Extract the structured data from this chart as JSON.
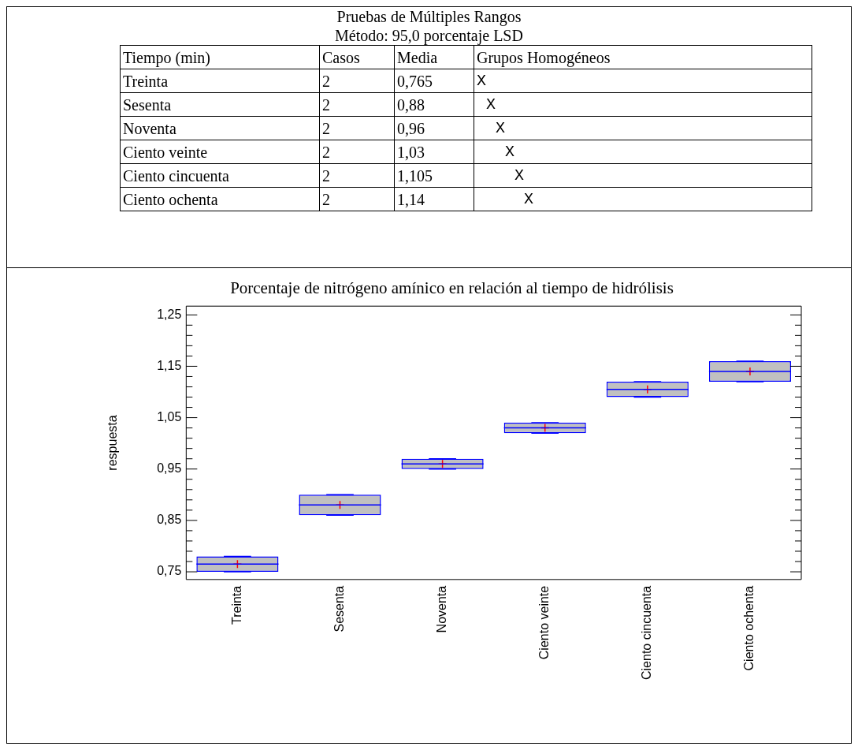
{
  "chart_data": [
    {
      "type": "other",
      "title": "Pruebas de Múltiples Rangos",
      "subtitle": "Método: 95,0 porcentaje LSD",
      "annotations": [
        "Tiempo (min)",
        "Casos",
        "Media",
        "Grupos Homogéneos",
        "Treinta",
        "2",
        "0,765",
        "X",
        "Sesenta",
        "2",
        "0,88",
        "X",
        "Noventa",
        "2",
        "0,96",
        "X",
        "Ciento veinte",
        "2",
        "1,03",
        "X",
        "Ciento cincuenta",
        "2",
        "1,105",
        "X",
        "Ciento ochenta",
        "2",
        "1,14",
        "X"
      ]
    },
    {
      "type": "box",
      "title": "Porcentaje de nitrógeno amínico en relación al tiempo de hidrólisis",
      "ylabel": "respuesta",
      "categories": [
        "Treinta",
        "Sesenta",
        "Noventa",
        "Ciento veinte",
        "Ciento cincuenta",
        "Ciento ochenta"
      ],
      "series": [
        {
          "color": "#0000ff",
          "boxes": [
            {
              "low": 0.75,
              "q1": 0.75,
              "median": 0.765,
              "q3": 0.78,
              "high": 0.78,
              "mean": 0.765
            },
            {
              "low": 0.86,
              "q1": 0.86,
              "median": 0.88,
              "q3": 0.9,
              "high": 0.9,
              "mean": 0.88
            },
            {
              "low": 0.95,
              "q1": 0.95,
              "median": 0.96,
              "q3": 0.97,
              "high": 0.97,
              "mean": 0.96
            },
            {
              "low": 1.02,
              "q1": 1.02,
              "median": 1.03,
              "q3": 1.04,
              "high": 1.04,
              "mean": 1.03
            },
            {
              "low": 1.09,
              "q1": 1.09,
              "median": 1.105,
              "q3": 1.12,
              "high": 1.12,
              "mean": 1.105
            },
            {
              "low": 1.12,
              "q1": 1.12,
              "median": 1.14,
              "q3": 1.16,
              "high": 1.16,
              "mean": 1.14
            }
          ]
        }
      ],
      "ylim": [
        0.735,
        1.267
      ],
      "yticks": [
        {
          "value": 0.75,
          "label": "0,75"
        },
        {
          "value": 0.77,
          "label": null
        },
        {
          "value": 0.79,
          "label": null
        },
        {
          "value": 0.81,
          "label": null
        },
        {
          "value": 0.83,
          "label": null
        },
        {
          "value": 0.85,
          "label": "0,85"
        },
        {
          "value": 0.87,
          "label": null
        },
        {
          "value": 0.89,
          "label": null
        },
        {
          "value": 0.91,
          "label": null
        },
        {
          "value": 0.93,
          "label": null
        },
        {
          "value": 0.95,
          "label": "0,95"
        },
        {
          "value": 0.97,
          "label": null
        },
        {
          "value": 0.99,
          "label": null
        },
        {
          "value": 1.01,
          "label": null
        },
        {
          "value": 1.03,
          "label": null
        },
        {
          "value": 1.05,
          "label": "1,05"
        },
        {
          "value": 1.07,
          "label": null
        },
        {
          "value": 1.09,
          "label": null
        },
        {
          "value": 1.11,
          "label": null
        },
        {
          "value": 1.13,
          "label": null
        },
        {
          "value": 1.15,
          "label": "1,15"
        },
        {
          "value": 1.17,
          "label": null
        },
        {
          "value": 1.19,
          "label": null
        },
        {
          "value": 1.21,
          "label": null
        },
        {
          "value": 1.23,
          "label": null
        },
        {
          "value": 1.25,
          "label": "1,25"
        }
      ],
      "grid": false,
      "legend": false,
      "marker": "cross"
    }
  ]
}
